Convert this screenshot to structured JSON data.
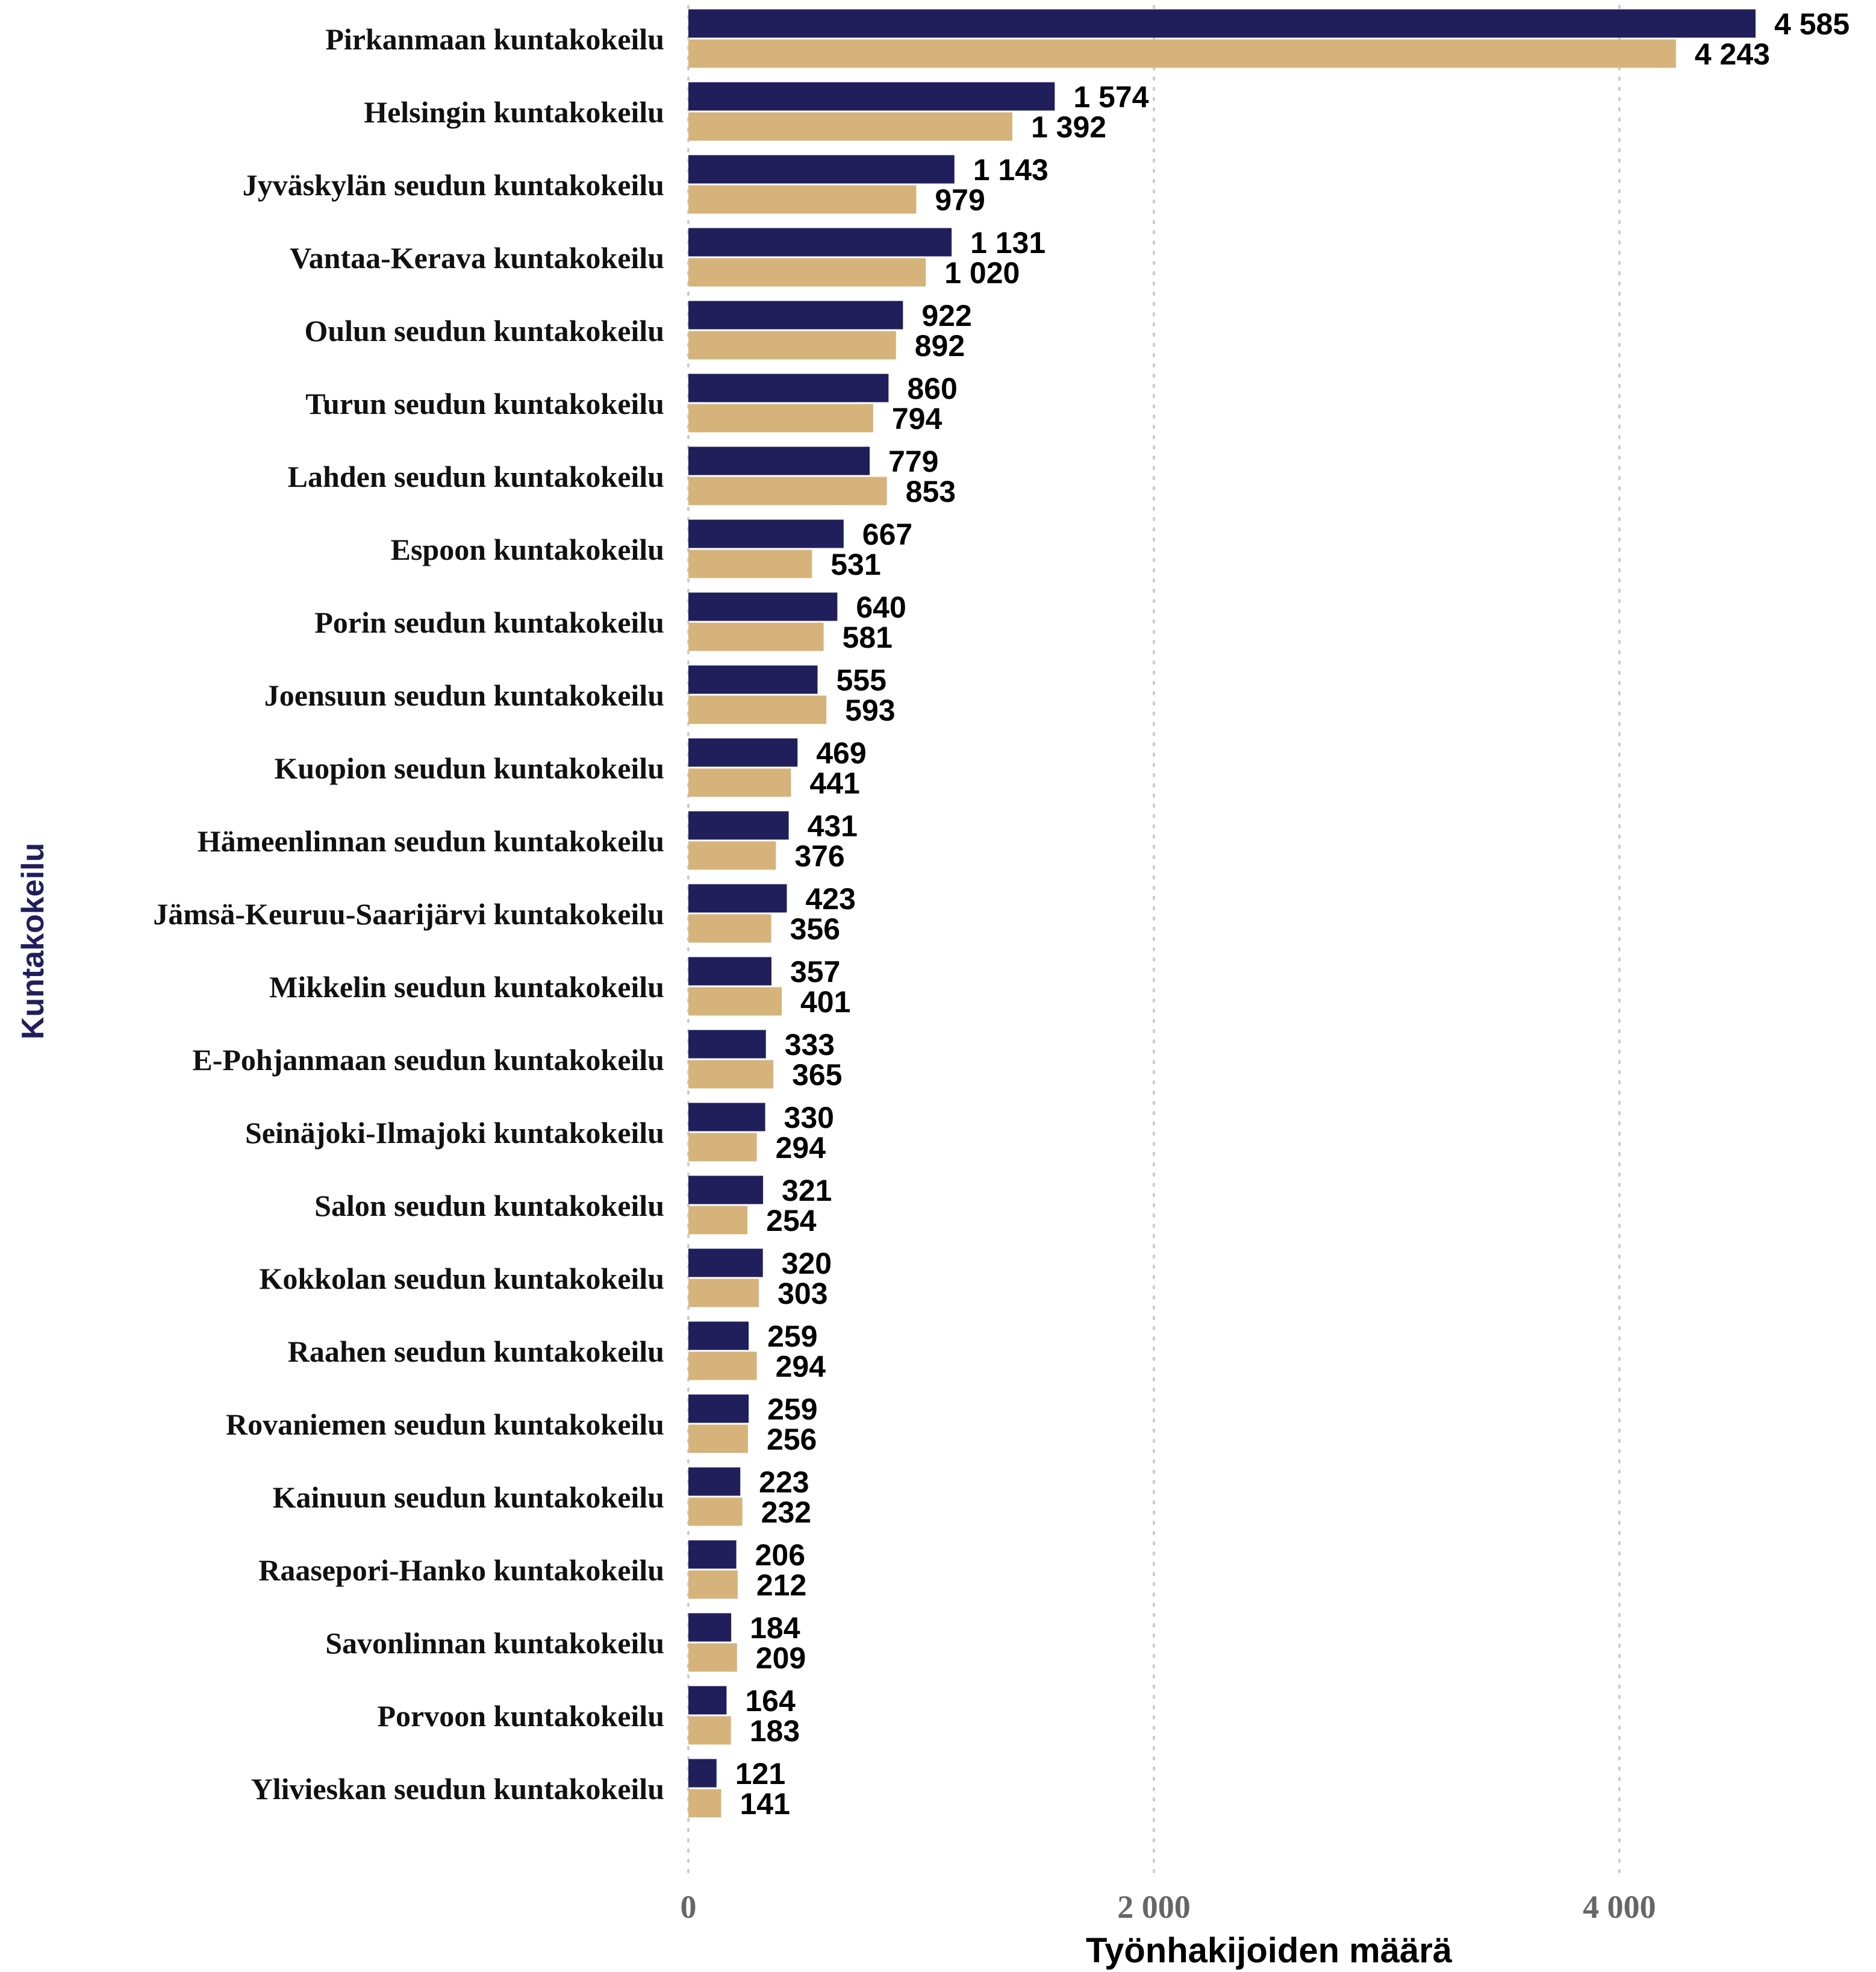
{
  "chart_data": {
    "type": "bar",
    "orientation": "horizontal",
    "xlabel": "Työnhakijoiden määrä",
    "ylabel": "Kuntakokeilu",
    "xlim": [
      0,
      4900
    ],
    "xticks": [
      {
        "value": 0,
        "label": "0"
      },
      {
        "value": 2000,
        "label": "2 000"
      },
      {
        "value": 4000,
        "label": "4 000"
      }
    ],
    "grid": "vertical dotted",
    "legend": "none",
    "categories": [
      "Pirkanmaan kuntakokeilu",
      "Helsingin kuntakokeilu",
      "Jyväskylän seudun kuntakokeilu",
      "Vantaa-Kerava kuntakokeilu",
      "Oulun seudun kuntakokeilu",
      "Turun seudun kuntakokeilu",
      "Lahden seudun kuntakokeilu",
      "Espoon kuntakokeilu",
      "Porin seudun kuntakokeilu",
      "Joensuun seudun kuntakokeilu",
      "Kuopion seudun kuntakokeilu",
      "Hämeenlinnan seudun kuntakokeilu",
      "Jämsä-Keuruu-Saarijärvi kuntakokeilu",
      "Mikkelin seudun kuntakokeilu",
      "E-Pohjanmaan seudun kuntakokeilu",
      "Seinäjoki-Ilmajoki kuntakokeilu",
      "Salon seudun kuntakokeilu",
      "Kokkolan seudun kuntakokeilu",
      "Raahen seudun kuntakokeilu",
      "Rovaniemen seudun kuntakokeilu",
      "Kainuun seudun kuntakokeilu",
      "Raasepori-Hanko kuntakokeilu",
      "Savonlinnan kuntakokeilu",
      "Porvoon kuntakokeilu",
      "Ylivieskan seudun kuntakokeilu"
    ],
    "series": [
      {
        "color": "#201f5b",
        "values": [
          4585,
          1574,
          1143,
          1131,
          922,
          860,
          779,
          667,
          640,
          555,
          469,
          431,
          423,
          357,
          333,
          330,
          321,
          320,
          259,
          259,
          223,
          206,
          184,
          164,
          121
        ],
        "labels": [
          "4 585",
          "1 574",
          "1 143",
          "1 131",
          "922",
          "860",
          "779",
          "667",
          "640",
          "555",
          "469",
          "431",
          "423",
          "357",
          "333",
          "330",
          "321",
          "320",
          "259",
          "259",
          "223",
          "206",
          "184",
          "164",
          "121"
        ]
      },
      {
        "color": "#d6b37a",
        "values": [
          4243,
          1392,
          979,
          1020,
          892,
          794,
          853,
          531,
          581,
          593,
          441,
          376,
          356,
          401,
          365,
          294,
          254,
          303,
          294,
          256,
          232,
          212,
          209,
          183,
          141
        ],
        "labels": [
          "4 243",
          "1 392",
          "979",
          "1 020",
          "892",
          "794",
          "853",
          "531",
          "581",
          "593",
          "441",
          "376",
          "356",
          "401",
          "365",
          "294",
          "254",
          "303",
          "294",
          "256",
          "232",
          "212",
          "209",
          "183",
          "141"
        ]
      }
    ],
    "colors": {
      "ylabel": "#201f5b",
      "ticks": "#666666",
      "grid": "#cccccc"
    }
  }
}
